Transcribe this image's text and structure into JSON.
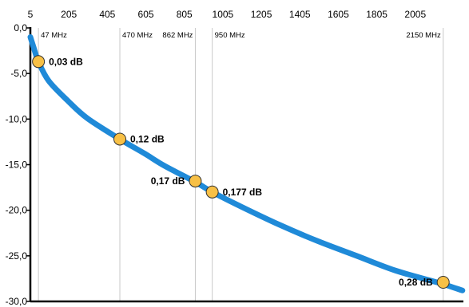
{
  "chart_data": {
    "type": "line",
    "title": "",
    "xlabel": "",
    "ylabel": "",
    "xlim": [
      5,
      2255
    ],
    "ylim": [
      -30,
      0
    ],
    "x_ticks": [
      5,
      205,
      405,
      605,
      805,
      1005,
      1205,
      1405,
      1605,
      1805,
      2005
    ],
    "y_ticks": [
      0,
      -5,
      -10,
      -15,
      -20,
      -25,
      -30
    ],
    "y_tick_labels": [
      "0,0",
      "-5,0",
      "-10,0",
      "-15,0",
      "-20,0",
      "-25,0",
      "-30,0"
    ],
    "grid": "vertical lines at marked frequencies",
    "series": [
      {
        "color": "#1f8ad8",
        "x": [
          5,
          20,
          47,
          100,
          200,
          300,
          470,
          600,
          700,
          862,
          950,
          1100,
          1300,
          1500,
          1700,
          1900,
          2100,
          2150,
          2250
        ],
        "y": [
          -1.0,
          -2.0,
          -3.7,
          -5.8,
          -8.0,
          -9.9,
          -12.2,
          -13.8,
          -15.1,
          -16.9,
          -18.0,
          -19.6,
          -21.6,
          -23.4,
          -25.0,
          -26.6,
          -27.8,
          -28.1,
          -28.8
        ]
      }
    ],
    "markers": [
      {
        "freq": 47,
        "y": -3.7,
        "label": "0,03 dB",
        "side": "right"
      },
      {
        "freq": 470,
        "y": -12.2,
        "label": "0,12 dB",
        "side": "right"
      },
      {
        "freq": 862,
        "y": -16.8,
        "label": "0,17 dB",
        "side": "left"
      },
      {
        "freq": 950,
        "y": -18.0,
        "label": "0,177 dB",
        "side": "right"
      },
      {
        "freq": 2150,
        "y": -27.9,
        "label": "0,28 dB",
        "side": "left"
      }
    ],
    "vlines": [
      {
        "x": 47,
        "label": "47 MHz"
      },
      {
        "x": 470,
        "label": "470 MHz"
      },
      {
        "x": 862,
        "label": "862 MHz",
        "label_side": "left"
      },
      {
        "x": 950,
        "label": "950 MHz"
      },
      {
        "x": 2150,
        "label": "2150 MHz",
        "label_side": "left"
      }
    ],
    "marker_color": "#f7c046",
    "axis_color": "#000000",
    "grid_color": "#c8c8c8"
  }
}
